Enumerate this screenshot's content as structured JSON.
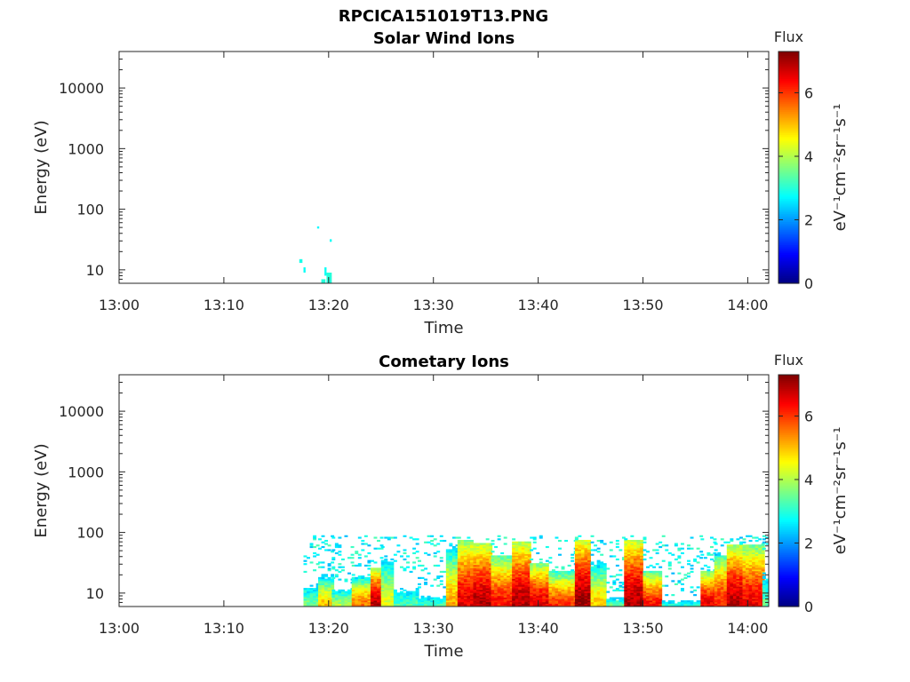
{
  "figure_title": "RPCICA151019T13.PNG",
  "chart_data": [
    {
      "type": "heatmap",
      "title": "Solar Wind Ions",
      "xlabel": "Time",
      "ylabel": "Energy (eV)",
      "x_range": [
        "13:00",
        "14:02"
      ],
      "x_ticks": [
        "13:00",
        "13:10",
        "13:20",
        "13:30",
        "13:40",
        "13:50",
        "14:00"
      ],
      "y_scale": "log",
      "y_range": [
        6,
        40000
      ],
      "y_ticks": [
        "10",
        "100",
        "1000",
        "10000"
      ],
      "colorbar": {
        "title": "Flux",
        "label": "eV⁻¹cm⁻²sr⁻¹s⁻¹",
        "range": [
          0,
          7.3
        ],
        "ticks": [
          "0",
          "2",
          "4",
          "6"
        ],
        "colormap": "jet"
      },
      "blocks": [
        {
          "t0": 17.2,
          "t1": 17.5,
          "e0": 13,
          "e1": 15,
          "v": 2.9
        },
        {
          "t0": 17.6,
          "t1": 17.8,
          "e0": 9,
          "e1": 11,
          "v": 2.8
        },
        {
          "t0": 18.9,
          "t1": 19.1,
          "e0": 48,
          "e1": 52,
          "v": 2.7
        },
        {
          "t0": 19.3,
          "t1": 19.7,
          "e0": 6,
          "e1": 7,
          "v": 3.0
        },
        {
          "t0": 19.6,
          "t1": 19.8,
          "e0": 8,
          "e1": 11,
          "v": 2.8
        },
        {
          "t0": 19.8,
          "t1": 20.3,
          "e0": 6,
          "e1": 9,
          "v": 3.0
        },
        {
          "t0": 20.1,
          "t1": 20.3,
          "e0": 29,
          "e1": 32,
          "v": 2.8
        }
      ]
    },
    {
      "type": "heatmap",
      "title": "Cometary Ions",
      "xlabel": "Time",
      "ylabel": "Energy (eV)",
      "x_range": [
        "13:00",
        "14:02"
      ],
      "x_ticks": [
        "13:00",
        "13:10",
        "13:20",
        "13:30",
        "13:40",
        "13:50",
        "14:00"
      ],
      "y_scale": "log",
      "y_range": [
        6,
        40000
      ],
      "y_ticks": [
        "10",
        "100",
        "1000",
        "10000"
      ],
      "colorbar": {
        "title": "Flux",
        "label": "eV⁻¹cm⁻²sr⁻¹s⁻¹",
        "range": [
          0,
          7.3
        ],
        "ticks": [
          "0",
          "2",
          "4",
          "6"
        ],
        "colormap": "jet"
      },
      "profiles": [
        {
          "t0": 17.6,
          "t1": 19.0,
          "top": 20,
          "peak": 3.6
        },
        {
          "t0": 19.0,
          "t1": 20.3,
          "top": 20,
          "peak": 5.0
        },
        {
          "t0": 20.3,
          "t1": 22.2,
          "top": 14,
          "peak": 4.1
        },
        {
          "t0": 22.2,
          "t1": 24.0,
          "top": 18,
          "peak": 5.6
        },
        {
          "t0": 24.0,
          "t1": 25.0,
          "top": 25,
          "peak": 6.9
        },
        {
          "t0": 25.0,
          "t1": 26.2,
          "top": 55,
          "peak": 4.4
        },
        {
          "t0": 26.2,
          "t1": 28.5,
          "top": 20,
          "peak": 3.3
        },
        {
          "t0": 28.5,
          "t1": 31.2,
          "top": 12,
          "peak": 3.2
        },
        {
          "t0": 31.2,
          "t1": 32.3,
          "top": 60,
          "peak": 5.2
        },
        {
          "t0": 32.3,
          "t1": 33.8,
          "top": 75,
          "peak": 6.6
        },
        {
          "t0": 33.8,
          "t1": 35.5,
          "top": 65,
          "peak": 6.9
        },
        {
          "t0": 35.5,
          "t1": 37.5,
          "top": 40,
          "peak": 6.3
        },
        {
          "t0": 37.5,
          "t1": 39.2,
          "top": 70,
          "peak": 6.9
        },
        {
          "t0": 39.2,
          "t1": 41.0,
          "top": 30,
          "peak": 6.6
        },
        {
          "t0": 41.0,
          "t1": 43.5,
          "top": 22,
          "peak": 6.0
        },
        {
          "t0": 43.5,
          "t1": 45.0,
          "top": 75,
          "peak": 7.1
        },
        {
          "t0": 45.0,
          "t1": 46.5,
          "top": 35,
          "peak": 4.9
        },
        {
          "t0": 46.5,
          "t1": 48.2,
          "top": 10,
          "peak": 3.5
        },
        {
          "t0": 48.2,
          "t1": 50.0,
          "top": 75,
          "peak": 7.0
        },
        {
          "t0": 50.0,
          "t1": 51.8,
          "top": 22,
          "peak": 6.3
        },
        {
          "t0": 51.8,
          "t1": 55.5,
          "top": 9,
          "peak": 3.0
        },
        {
          "t0": 55.5,
          "t1": 56.8,
          "top": 22,
          "peak": 6.6
        },
        {
          "t0": 56.8,
          "t1": 58.0,
          "top": 40,
          "peak": 6.2
        },
        {
          "t0": 58.0,
          "t1": 59.5,
          "top": 60,
          "peak": 6.9
        },
        {
          "t0": 59.5,
          "t1": 61.4,
          "top": 60,
          "peak": 6.5
        },
        {
          "t0": 61.4,
          "t1": 62.0,
          "top": 40,
          "peak": 3.5
        }
      ]
    }
  ]
}
